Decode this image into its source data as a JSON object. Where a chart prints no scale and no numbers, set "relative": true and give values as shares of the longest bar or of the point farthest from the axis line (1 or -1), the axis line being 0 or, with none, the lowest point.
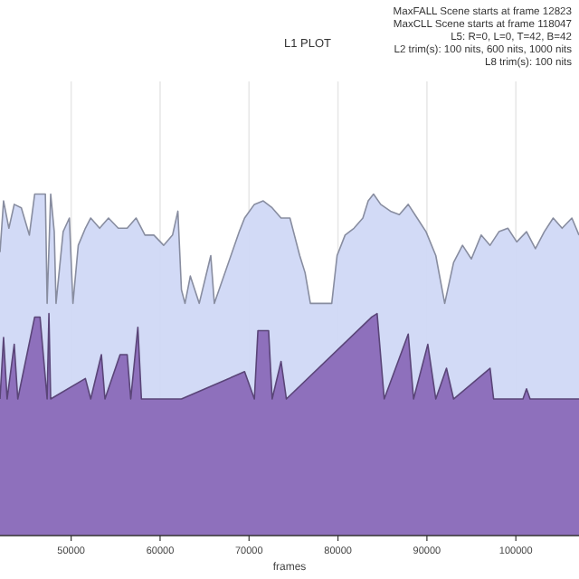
{
  "chart_data": {
    "type": "area",
    "title": "L1 PLOT",
    "xlabel": "frames",
    "relative": true,
    "grid": "x",
    "annotations": [
      "MaxFALL Scene starts at frame 12823",
      "MaxCLL Scene starts at frame 118047",
      "L5: R=0, L=0, T=42, B=42",
      "L2 trim(s): 100 nits, 600 nits, 1000 nits",
      "L8 trim(s): 100 nits"
    ],
    "xlim": [
      42000,
      107100
    ],
    "xticks": [
      50000,
      60000,
      70000,
      80000,
      90000,
      100000
    ],
    "series": [
      {
        "color": "#d0d8f5",
        "x": [
          42000,
          42400,
          43000,
          43600,
          44400,
          45300,
          45900,
          47100,
          47300,
          47700,
          48100,
          48300,
          49100,
          49800,
          50200,
          50800,
          51600,
          52200,
          53200,
          54200,
          55300,
          56300,
          57300,
          58300,
          59300,
          60400,
          61400,
          62000,
          62400,
          62800,
          63400,
          64400,
          65700,
          66100,
          68900,
          69500,
          70600,
          71600,
          72600,
          73600,
          74600,
          75700,
          76300,
          76900,
          77700,
          79300,
          79900,
          80800,
          81800,
          82800,
          83400,
          84000,
          84800,
          85900,
          86900,
          87900,
          88900,
          89900,
          91000,
          92000,
          93000,
          94000,
          95000,
          96100,
          97100,
          98100,
          99100,
          100100,
          101200,
          102200,
          103200,
          104200,
          105200,
          106300,
          107100
        ],
        "values": [
          0.83,
          0.98,
          0.9,
          0.97,
          0.96,
          0.88,
          1.0,
          1.0,
          0.68,
          1.0,
          0.89,
          0.68,
          0.89,
          0.93,
          0.68,
          0.85,
          0.9,
          0.93,
          0.9,
          0.93,
          0.9,
          0.9,
          0.93,
          0.88,
          0.88,
          0.85,
          0.88,
          0.95,
          0.72,
          0.68,
          0.76,
          0.68,
          0.82,
          0.68,
          0.89,
          0.93,
          0.97,
          0.98,
          0.96,
          0.93,
          0.93,
          0.82,
          0.77,
          0.68,
          0.68,
          0.68,
          0.82,
          0.88,
          0.9,
          0.93,
          0.98,
          1.0,
          0.97,
          0.95,
          0.94,
          0.97,
          0.93,
          0.89,
          0.82,
          0.68,
          0.8,
          0.85,
          0.81,
          0.88,
          0.85,
          0.89,
          0.9,
          0.86,
          0.89,
          0.84,
          0.89,
          0.93,
          0.9,
          0.93,
          0.88
        ]
      },
      {
        "color": "#8a6ab8",
        "x": [
          42000,
          42400,
          42800,
          43600,
          44000,
          45900,
          46500,
          47300,
          47500,
          47700,
          51600,
          52200,
          53400,
          53800,
          55500,
          56300,
          56700,
          57500,
          57900,
          62400,
          69500,
          70600,
          71000,
          71600,
          72200,
          72600,
          73600,
          74200,
          83800,
          84400,
          85200,
          87900,
          88500,
          90100,
          91000,
          92200,
          93000,
          97100,
          97500,
          100800,
          101200,
          101600,
          107100
        ],
        "values": [
          0.4,
          0.58,
          0.4,
          0.56,
          0.4,
          0.64,
          0.64,
          0.4,
          0.65,
          0.4,
          0.46,
          0.4,
          0.53,
          0.4,
          0.53,
          0.53,
          0.4,
          0.61,
          0.4,
          0.4,
          0.48,
          0.4,
          0.6,
          0.6,
          0.6,
          0.4,
          0.51,
          0.4,
          0.64,
          0.65,
          0.4,
          0.59,
          0.4,
          0.56,
          0.4,
          0.49,
          0.4,
          0.49,
          0.4,
          0.4,
          0.43,
          0.4,
          0.4
        ]
      }
    ]
  }
}
